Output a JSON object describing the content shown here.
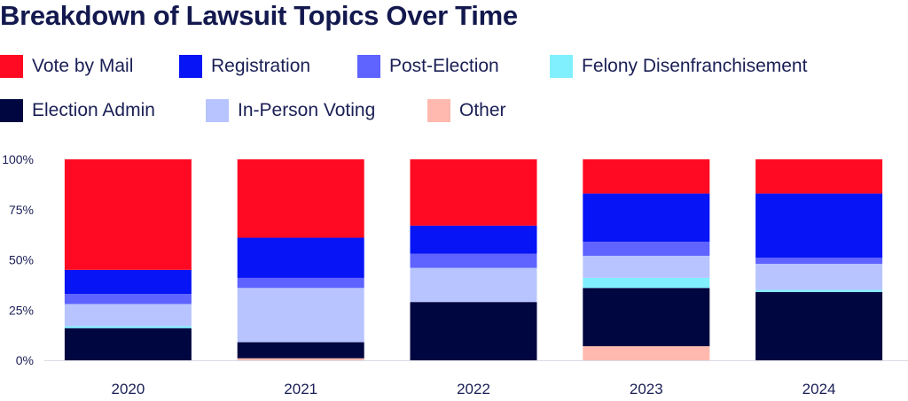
{
  "chart_data": {
    "type": "bar",
    "stacked": true,
    "title": "Breakdown of Lawsuit Topics Over Time",
    "categories": [
      "2020",
      "2021",
      "2022",
      "2023",
      "2024"
    ],
    "yticks": [
      "0%",
      "25%",
      "50%",
      "75%",
      "100%"
    ],
    "ylim": [
      0,
      100
    ],
    "series": [
      {
        "name": "Other",
        "color": "#FFB9AE",
        "values": [
          0,
          1,
          0,
          7,
          0
        ]
      },
      {
        "name": "Election Admin",
        "color": "#000640",
        "values": [
          16,
          8,
          29,
          29,
          34
        ]
      },
      {
        "name": "Felony Disenfranchisement",
        "color": "#80F0FF",
        "values": [
          1,
          0,
          0,
          5,
          1
        ]
      },
      {
        "name": "In-Person Voting",
        "color": "#B8C4FF",
        "values": [
          11,
          27,
          17,
          11,
          13
        ]
      },
      {
        "name": "Post-Election",
        "color": "#5F63FF",
        "values": [
          5,
          5,
          7,
          7,
          3
        ]
      },
      {
        "name": "Registration",
        "color": "#0714F5",
        "values": [
          12,
          20,
          14,
          24,
          32
        ]
      },
      {
        "name": "Vote by Mail",
        "color": "#FF0A22",
        "values": [
          55,
          39,
          33,
          17,
          17
        ]
      }
    ]
  },
  "legend": [
    {
      "name": "Vote by Mail",
      "color": "#FF0A22"
    },
    {
      "name": "Registration",
      "color": "#0714F5"
    },
    {
      "name": "Post-Election",
      "color": "#5F63FF"
    },
    {
      "name": "Felony Disenfranchisement",
      "color": "#80F0FF"
    },
    {
      "name": "Election Admin",
      "color": "#000640"
    },
    {
      "name": "In-Person Voting",
      "color": "#B8C4FF"
    },
    {
      "name": "Other",
      "color": "#FFB9AE"
    }
  ]
}
